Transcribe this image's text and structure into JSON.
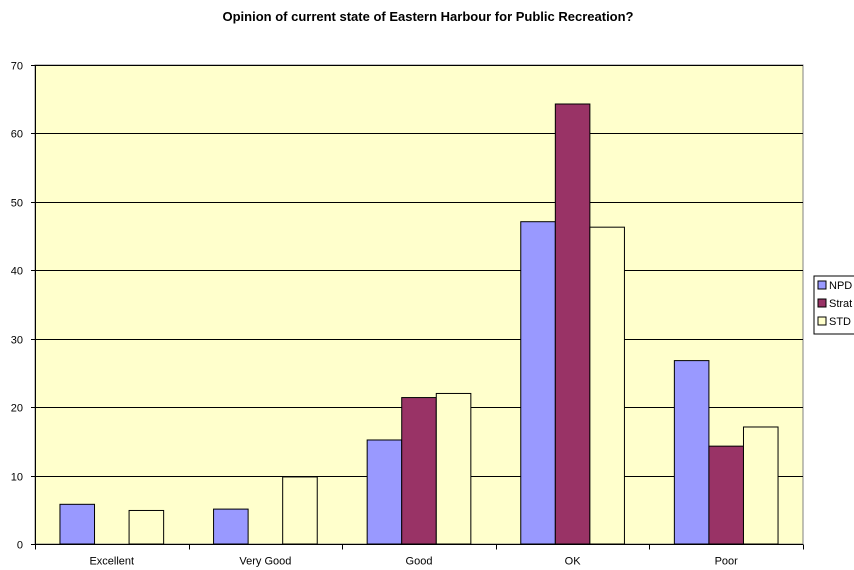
{
  "chart_data": {
    "type": "bar",
    "title": "Opinion of current state of Eastern Harbour for Public Recreation?",
    "xlabel": "",
    "ylabel": "",
    "categories": [
      "Excellent",
      "Very Good",
      "Good",
      "OK",
      "Poor"
    ],
    "ylim": [
      0,
      70
    ],
    "yticks": [
      0,
      10,
      20,
      30,
      40,
      50,
      60,
      70
    ],
    "grid": true,
    "legend_position": "right",
    "plot_background": "#ffffcc",
    "series": [
      {
        "name": "NPD",
        "color": "#9999ff",
        "values": [
          5.8,
          5.1,
          15.2,
          47.1,
          26.8
        ]
      },
      {
        "name": "Strat",
        "color": "#993366",
        "values": [
          0,
          0,
          21.4,
          64.3,
          14.3
        ]
      },
      {
        "name": "STD",
        "color": "#ffffcc",
        "values": [
          4.9,
          9.8,
          22.0,
          46.3,
          17.1
        ]
      }
    ]
  }
}
